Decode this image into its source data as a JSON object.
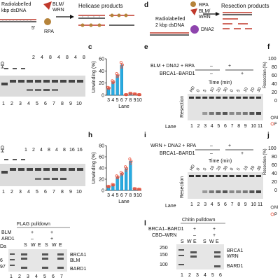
{
  "colors": {
    "bar": "#29abe2",
    "bar_edge": "#0e78a8",
    "dot": "#e8503a",
    "blm": "#c0392b",
    "rpa": "#b5833a",
    "dna2": "#8e44ad"
  },
  "panels": {
    "b": {
      "line1": "Radiolabelled",
      "line2": "kbp dsDNA",
      "blm_wrn": "BLM/\nWRN",
      "rpa": "RPA",
      "five": "5'",
      "products": "Helicase products"
    },
    "d": {
      "letter": "d",
      "line1": "Radiolabelled",
      "line2": "2 kbp dsDNA",
      "rpa": "RPA",
      "blm_wrn": "BLM/\nWRN",
      "dna2": "DNA2",
      "products": "Resection products"
    },
    "c": {
      "letter": "c"
    },
    "e": {
      "letter": "e",
      "row1": "BLM + DNA2 + RPA",
      "row2": "BRCA1–BARD1",
      "time": "Time (min)",
      "resection": "Resection",
      "lane": "Lane",
      "row1_vals": [
        "–",
        "+"
      ],
      "row2_vals": [
        "–",
        "+"
      ],
      "times": [
        "HD",
        "0",
        "5",
        "10",
        "20",
        "30",
        "0",
        "5",
        "10",
        "20",
        "30"
      ],
      "lanes": [
        "1",
        "2",
        "3",
        "4",
        "5",
        "6",
        "7",
        "8",
        "9",
        "10",
        "11"
      ]
    },
    "f": {
      "letter": "f",
      "ticks": [
        "100",
        "80",
        "60",
        "40",
        "20",
        "0"
      ],
      "ylabel": "Resection (%)"
    },
    "h": {
      "letter": "h"
    },
    "i": {
      "letter": "i",
      "row1": "WRN + DNA2 + RPA",
      "row2": "BRCA1–BARD1",
      "time": "Time (min)",
      "resection": "Resection",
      "lane": "Lane",
      "row1_vals": [
        "–",
        "+"
      ],
      "row2_vals": [
        "–",
        "+"
      ],
      "times": [
        "HD",
        "0",
        "5",
        "10",
        "20",
        "30",
        "0",
        "5",
        "10",
        "20",
        "30"
      ],
      "lanes": [
        "1",
        "2",
        "3",
        "4",
        "5",
        "6",
        "7",
        "8",
        "9",
        "10",
        "11"
      ]
    },
    "j": {
      "letter": "j",
      "ticks": [
        "100",
        "80",
        "60",
        "40",
        "20",
        "0"
      ],
      "ylabel": "Resection (%)"
    },
    "gel_c": {
      "hd": "HD",
      "nums": [
        "2",
        "4",
        "8",
        "4",
        "8",
        "4",
        "8"
      ],
      "lanes": [
        "1",
        "2",
        "3",
        "4",
        "5",
        "6",
        "7",
        "8",
        "9",
        "10"
      ]
    },
    "gel_h": {
      "hd": "HD",
      "nums": [
        "1",
        "2",
        "4",
        "8",
        "4",
        "8",
        "16",
        "16"
      ],
      "lanes": [
        "1",
        "2",
        "3",
        "4",
        "5",
        "6",
        "7",
        "8",
        "9",
        "10"
      ]
    },
    "k": {
      "title": "FLAG pulldown",
      "r1": "BLM",
      "r2": "ARD1",
      "r1_vals": [
        "+",
        "+"
      ],
      "r2_vals": [
        "–",
        "+"
      ],
      "swe": [
        "S",
        "W",
        "E",
        "S",
        "W",
        "E"
      ],
      "kda": "Da",
      "mw": [
        "",
        "6",
        "97"
      ],
      "labels": [
        "BRCA1",
        "BLM",
        "BARD1"
      ],
      "lanes": [
        "1",
        "2",
        "3",
        "4",
        "5",
        "6",
        "7"
      ]
    },
    "l": {
      "letter": "l",
      "title": "Chitin pulldown",
      "r1": "BRCA1–BARD1",
      "r2": "CBD–WRN",
      "r1_vals": [
        "+",
        "+"
      ],
      "r2_vals": [
        "–",
        "+"
      ],
      "swe": [
        "S",
        "W",
        "E",
        "S",
        "W",
        "E"
      ],
      "mw": [
        "250",
        "150",
        "100"
      ],
      "labels": [
        "BRCA1",
        "WRN",
        "BARD1"
      ],
      "lanes": [
        "1",
        "2",
        "3",
        "4",
        "5",
        "6"
      ]
    }
  },
  "right_edge": {
    "f": [
      "M",
      "F"
    ],
    "j": [
      "M",
      "P"
    ]
  },
  "chart_data": [
    {
      "type": "bar",
      "title": "",
      "xlabel": "Lane",
      "ylabel": "Unwinding (%)",
      "ylim": [
        0,
        60
      ],
      "ticks": [
        "0",
        "20",
        "40",
        "60"
      ],
      "categories": [
        "3",
        "4",
        "5",
        "6",
        "7",
        "8",
        "9",
        "10"
      ],
      "values": [
        12,
        22,
        33,
        50,
        1,
        3,
        2,
        1
      ]
    },
    {
      "type": "bar",
      "title": "",
      "xlabel": "Lane",
      "ylabel": "Unwinding (%)",
      "ylim": [
        0,
        80
      ],
      "ticks": [
        "0",
        "20",
        "40",
        "60",
        "80"
      ],
      "categories": [
        "3",
        "4",
        "5",
        "6",
        "7",
        "8",
        "9",
        "10"
      ],
      "values": [
        7,
        10,
        24,
        30,
        39,
        52,
        3,
        2
      ]
    }
  ]
}
